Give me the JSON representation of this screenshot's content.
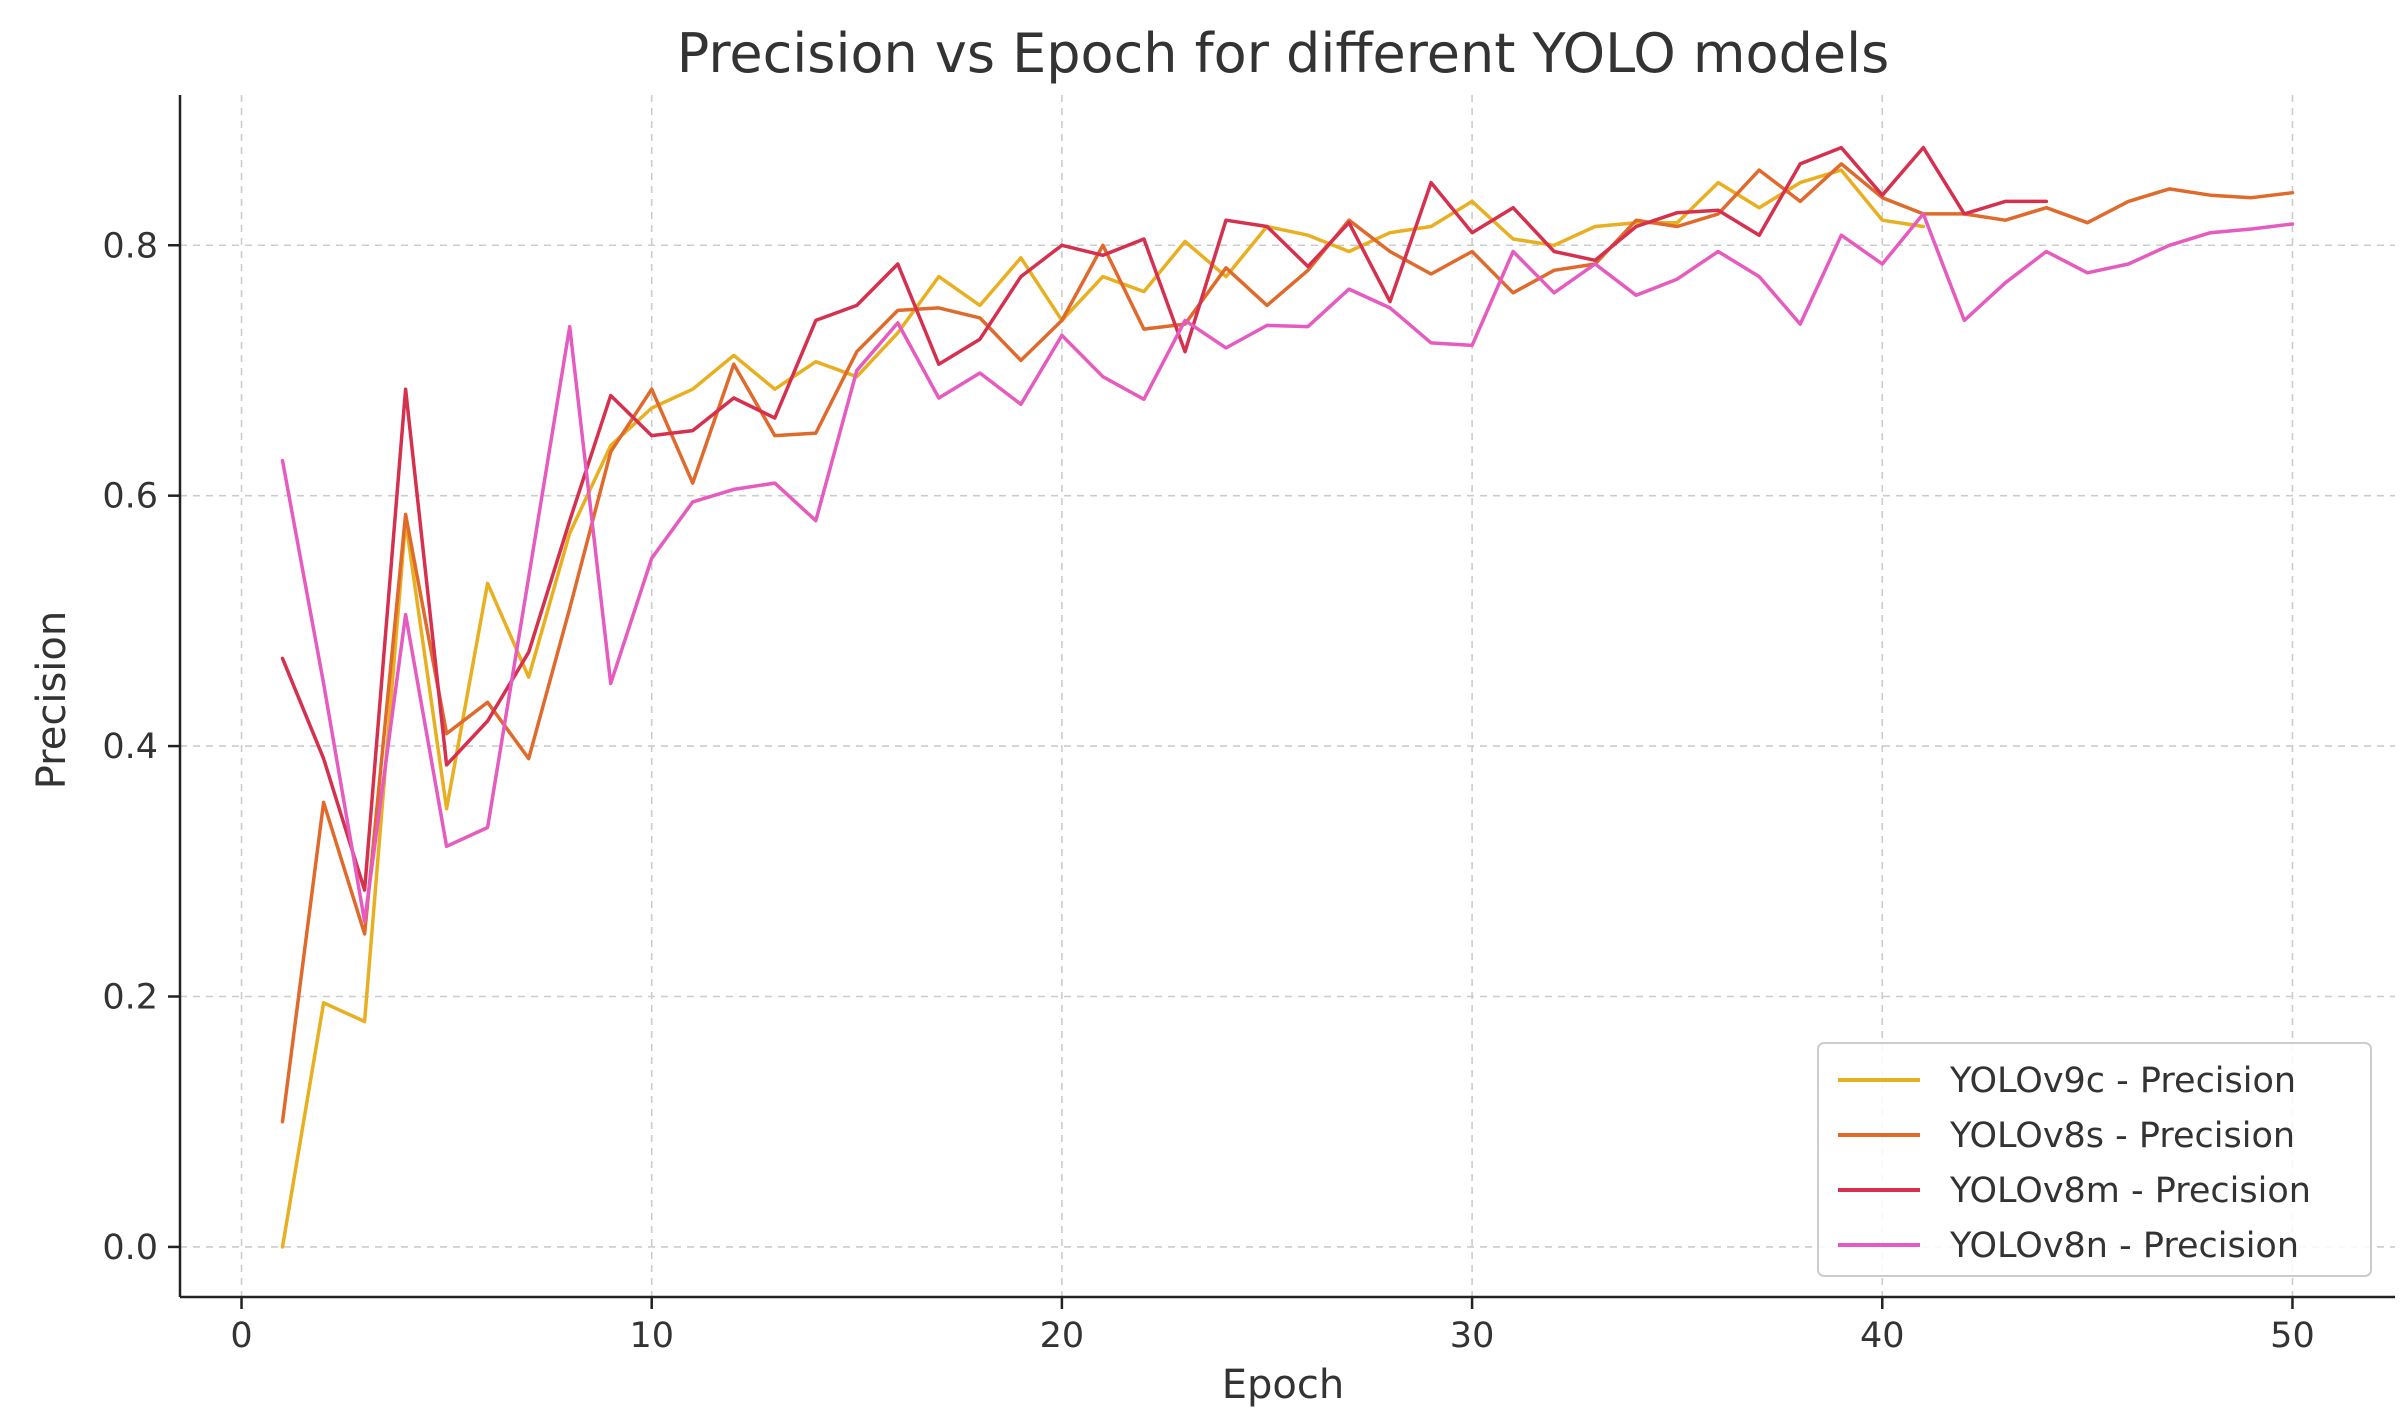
{
  "chart_data": {
    "type": "line",
    "title": "Precision vs Epoch for different YOLO models",
    "xlabel": "Epoch",
    "ylabel": "Precision",
    "xlim": [
      -1.5,
      52.5
    ],
    "ylim": [
      -0.04,
      0.92
    ],
    "xticks": [
      0,
      10,
      20,
      30,
      40,
      50
    ],
    "xtick_labels": [
      "0",
      "10",
      "20",
      "30",
      "40",
      "50"
    ],
    "yticks": [
      0.0,
      0.2,
      0.4,
      0.6,
      0.8
    ],
    "ytick_labels": [
      "0.0",
      "0.2",
      "0.4",
      "0.6",
      "0.8"
    ],
    "grid": true,
    "legend_position": "bottom-right",
    "series": [
      {
        "name": "YOLOv9c - Precision",
        "color": "#e8b021",
        "x": [
          1,
          2,
          3,
          4,
          5,
          6,
          7,
          8,
          9,
          10,
          11,
          12,
          13,
          14,
          15,
          16,
          17,
          18,
          19,
          20,
          21,
          22,
          23,
          24,
          25,
          26,
          27,
          28,
          29,
          30,
          31,
          32,
          33,
          34,
          35,
          36,
          37,
          38,
          39,
          40,
          41
        ],
        "values": [
          0.0,
          0.195,
          0.18,
          0.58,
          0.35,
          0.53,
          0.455,
          0.57,
          0.64,
          0.67,
          0.685,
          0.712,
          0.685,
          0.707,
          0.695,
          0.73,
          0.775,
          0.752,
          0.79,
          0.74,
          0.775,
          0.763,
          0.803,
          0.775,
          0.815,
          0.808,
          0.795,
          0.81,
          0.815,
          0.835,
          0.805,
          0.8,
          0.815,
          0.818,
          0.818,
          0.85,
          0.83,
          0.85,
          0.86,
          0.82,
          0.815
        ]
      },
      {
        "name": "YOLOv8s - Precision",
        "color": "#e06a2c",
        "x": [
          1,
          2,
          3,
          4,
          5,
          6,
          7,
          8,
          9,
          10,
          11,
          12,
          13,
          14,
          15,
          16,
          17,
          18,
          19,
          20,
          21,
          22,
          23,
          24,
          25,
          26,
          27,
          28,
          29,
          30,
          31,
          32,
          33,
          34,
          35,
          36,
          37,
          38,
          39,
          40,
          41,
          42,
          43,
          44,
          45,
          46,
          47,
          48,
          49,
          50
        ],
        "values": [
          0.1,
          0.355,
          0.25,
          0.585,
          0.41,
          0.435,
          0.39,
          0.51,
          0.635,
          0.685,
          0.61,
          0.705,
          0.648,
          0.65,
          0.715,
          0.748,
          0.75,
          0.742,
          0.708,
          0.74,
          0.8,
          0.733,
          0.737,
          0.782,
          0.752,
          0.78,
          0.82,
          0.795,
          0.777,
          0.795,
          0.762,
          0.78,
          0.785,
          0.82,
          0.815,
          0.825,
          0.86,
          0.835,
          0.865,
          0.838,
          0.825,
          0.825,
          0.82,
          0.83,
          0.818,
          0.835,
          0.845,
          0.84,
          0.838,
          0.842
        ]
      },
      {
        "name": "YOLOv8m - Precision",
        "color": "#d6304f",
        "x": [
          1,
          2,
          3,
          4,
          5,
          6,
          7,
          8,
          9,
          10,
          11,
          12,
          13,
          14,
          15,
          16,
          17,
          18,
          19,
          20,
          21,
          22,
          23,
          24,
          25,
          26,
          27,
          28,
          29,
          30,
          31,
          32,
          33,
          34,
          35,
          36,
          37,
          38,
          39,
          40,
          41,
          42,
          43,
          44
        ],
        "values": [
          0.47,
          0.39,
          0.285,
          0.685,
          0.385,
          0.42,
          0.475,
          0.58,
          0.68,
          0.648,
          0.652,
          0.678,
          0.662,
          0.74,
          0.752,
          0.785,
          0.705,
          0.725,
          0.775,
          0.8,
          0.792,
          0.805,
          0.715,
          0.82,
          0.815,
          0.783,
          0.818,
          0.755,
          0.85,
          0.81,
          0.83,
          0.795,
          0.788,
          0.815,
          0.826,
          0.828,
          0.808,
          0.865,
          0.878,
          0.84,
          0.878,
          0.825,
          0.835,
          0.835
        ]
      },
      {
        "name": "YOLOv8n - Precision",
        "color": "#e55bbf",
        "x": [
          1,
          2,
          3,
          4,
          5,
          6,
          7,
          8,
          9,
          10,
          11,
          12,
          13,
          14,
          15,
          16,
          17,
          18,
          19,
          20,
          21,
          22,
          23,
          24,
          25,
          26,
          27,
          28,
          29,
          30,
          31,
          32,
          33,
          34,
          35,
          36,
          37,
          38,
          39,
          40,
          41,
          42,
          43,
          44,
          45,
          46,
          47,
          48,
          49,
          50
        ],
        "values": [
          0.628,
          0.45,
          0.26,
          0.505,
          0.32,
          0.335,
          0.535,
          0.735,
          0.45,
          0.55,
          0.595,
          0.605,
          0.61,
          0.58,
          0.7,
          0.738,
          0.678,
          0.698,
          0.673,
          0.728,
          0.695,
          0.677,
          0.74,
          0.718,
          0.736,
          0.735,
          0.765,
          0.75,
          0.722,
          0.72,
          0.795,
          0.762,
          0.785,
          0.76,
          0.773,
          0.795,
          0.775,
          0.737,
          0.808,
          0.785,
          0.825,
          0.74,
          0.77,
          0.795,
          0.778,
          0.785,
          0.8,
          0.81,
          0.813,
          0.817
        ]
      }
    ]
  }
}
